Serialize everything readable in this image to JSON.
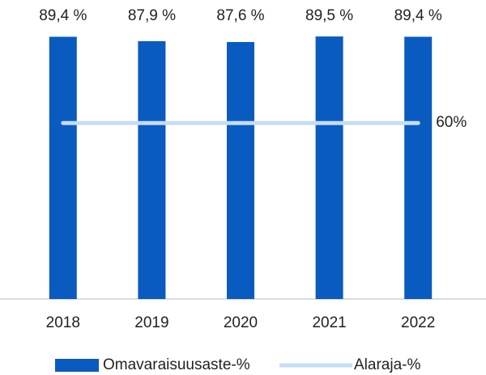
{
  "chart_data": {
    "type": "bar",
    "categories": [
      "2018",
      "2019",
      "2020",
      "2021",
      "2022"
    ],
    "series": [
      {
        "name": "Omavaraisuusaste-%",
        "color": "#0a5bbf",
        "values": [
          89.4,
          87.9,
          87.6,
          89.5,
          89.4
        ],
        "value_labels": [
          "89,4 %",
          "87,9 %",
          "87,6 %",
          "89,5 %",
          "89,4 %"
        ]
      },
      {
        "name": "Alaraja-%",
        "type": "line",
        "color": "#c6dcf6",
        "values": [
          60,
          60,
          60,
          60,
          60
        ],
        "value_labels": [
          null,
          null,
          null,
          null,
          "60%"
        ]
      }
    ],
    "ylim": [
      0,
      100
    ],
    "legend": "bottom"
  }
}
